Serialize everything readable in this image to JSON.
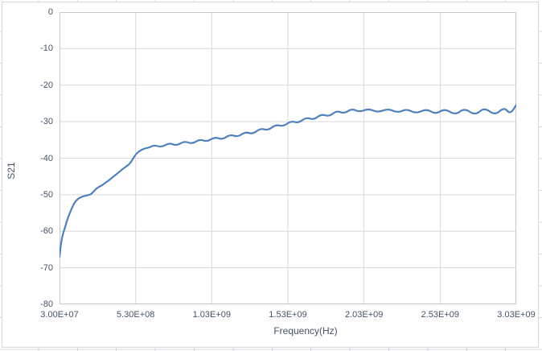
{
  "chart": {
    "background_color": "#ffffff",
    "chart_border_color": "#d9d9d9",
    "plot_border_color": "#c6c6c6",
    "gridline_color": "#d9d9d9",
    "label_color": "#44546a",
    "sheet_gridline_color": "#d6dce4"
  },
  "chart_data": {
    "type": "line",
    "title": "",
    "xlabel": "Frequency(Hz)",
    "ylabel": "S21",
    "xlim": [
      30000000.0,
      3030000000.0
    ],
    "ylim": [
      -80,
      0
    ],
    "grid": true,
    "legend": "none",
    "x_ticks": [
      {
        "value": 30000000.0,
        "label": "3.00E+07"
      },
      {
        "value": 530000000.0,
        "label": "5.30E+08"
      },
      {
        "value": 1030000000.0,
        "label": "1.03E+09"
      },
      {
        "value": 1530000000.0,
        "label": "1.53E+09"
      },
      {
        "value": 2030000000.0,
        "label": "2.03E+09"
      },
      {
        "value": 2530000000.0,
        "label": "2.53E+09"
      },
      {
        "value": 3030000000.0,
        "label": "3.03E+09"
      }
    ],
    "y_ticks": [
      {
        "value": 0,
        "label": "0"
      },
      {
        "value": -10,
        "label": "-10"
      },
      {
        "value": -20,
        "label": "-20"
      },
      {
        "value": -30,
        "label": "-30"
      },
      {
        "value": -40,
        "label": "-40"
      },
      {
        "value": -50,
        "label": "-50"
      },
      {
        "value": -60,
        "label": "-60"
      },
      {
        "value": -70,
        "label": "-70"
      },
      {
        "value": -80,
        "label": "-80"
      }
    ],
    "series": [
      {
        "name": "S21",
        "color": "#4f81bd",
        "stroke_width": 2.2,
        "points": [
          [
            30000000.0,
            -67.0
          ],
          [
            35000000.0,
            -65.0
          ],
          [
            40000000.0,
            -63.5
          ],
          [
            45000000.0,
            -62.2
          ],
          [
            50000000.0,
            -61.2
          ],
          [
            55000000.0,
            -60.4
          ],
          [
            60000000.0,
            -59.8
          ],
          [
            70000000.0,
            -58.4
          ],
          [
            80000000.0,
            -57.0
          ],
          [
            90000000.0,
            -55.8
          ],
          [
            100000000.0,
            -54.8
          ],
          [
            110000000.0,
            -53.8
          ],
          [
            120000000.0,
            -52.9
          ],
          [
            130000000.0,
            -52.1
          ],
          [
            140000000.0,
            -51.6
          ],
          [
            150000000.0,
            -51.2
          ],
          [
            160000000.0,
            -50.9
          ],
          [
            180000000.0,
            -50.5
          ],
          [
            200000000.0,
            -50.3
          ],
          [
            220000000.0,
            -50.1
          ],
          [
            240000000.0,
            -49.8
          ],
          [
            250000000.0,
            -49.3
          ],
          [
            270000000.0,
            -48.4
          ],
          [
            290000000.0,
            -47.8
          ],
          [
            310000000.0,
            -47.4
          ],
          [
            330000000.0,
            -46.8
          ],
          [
            360000000.0,
            -45.9
          ],
          [
            385000000.0,
            -45.0
          ],
          [
            410000000.0,
            -44.2
          ],
          [
            440000000.0,
            -43.1
          ],
          [
            460000000.0,
            -42.5
          ],
          [
            490000000.0,
            -41.6
          ],
          [
            510000000.0,
            -40.4
          ],
          [
            530000000.0,
            -38.9
          ],
          [
            560000000.0,
            -37.9
          ],
          [
            590000000.0,
            -37.3
          ],
          [
            620000000.0,
            -37.1
          ],
          [
            650000000.0,
            -36.4
          ],
          [
            700000000.0,
            -37.0
          ],
          [
            750000000.0,
            -35.8
          ],
          [
            800000000.0,
            -36.6
          ],
          [
            850000000.0,
            -35.3
          ],
          [
            900000000.0,
            -36.1
          ],
          [
            950000000.0,
            -34.8
          ],
          [
            1000000000.0,
            -35.5
          ],
          [
            1050000000.0,
            -34.2
          ],
          [
            1100000000.0,
            -34.9
          ],
          [
            1150000000.0,
            -33.5
          ],
          [
            1200000000.0,
            -34.2
          ],
          [
            1250000000.0,
            -32.8
          ],
          [
            1300000000.0,
            -33.4
          ],
          [
            1350000000.0,
            -31.8
          ],
          [
            1400000000.0,
            -32.4
          ],
          [
            1450000000.0,
            -30.8
          ],
          [
            1500000000.0,
            -31.3
          ],
          [
            1550000000.0,
            -29.8
          ],
          [
            1600000000.0,
            -30.4
          ],
          [
            1650000000.0,
            -28.8
          ],
          [
            1700000000.0,
            -29.5
          ],
          [
            1750000000.0,
            -27.9
          ],
          [
            1800000000.0,
            -28.6
          ],
          [
            1850000000.0,
            -27.0
          ],
          [
            1900000000.0,
            -27.8
          ],
          [
            1950000000.0,
            -26.4
          ],
          [
            2000000000.0,
            -27.4
          ],
          [
            2060000000.0,
            -26.4
          ],
          [
            2120000000.0,
            -27.5
          ],
          [
            2190000000.0,
            -26.4
          ],
          [
            2250000000.0,
            -27.6
          ],
          [
            2310000000.0,
            -26.5
          ],
          [
            2370000000.0,
            -27.8
          ],
          [
            2440000000.0,
            -26.5
          ],
          [
            2500000000.0,
            -28.0
          ],
          [
            2560000000.0,
            -26.4
          ],
          [
            2630000000.0,
            -28.2
          ],
          [
            2690000000.0,
            -26.3
          ],
          [
            2760000000.0,
            -28.3
          ],
          [
            2820000000.0,
            -26.1
          ],
          [
            2890000000.0,
            -28.3
          ],
          [
            2950000000.0,
            -26.0
          ],
          [
            2990000000.0,
            -28.0
          ],
          [
            3030000000.0,
            -25.4
          ]
        ]
      }
    ]
  }
}
